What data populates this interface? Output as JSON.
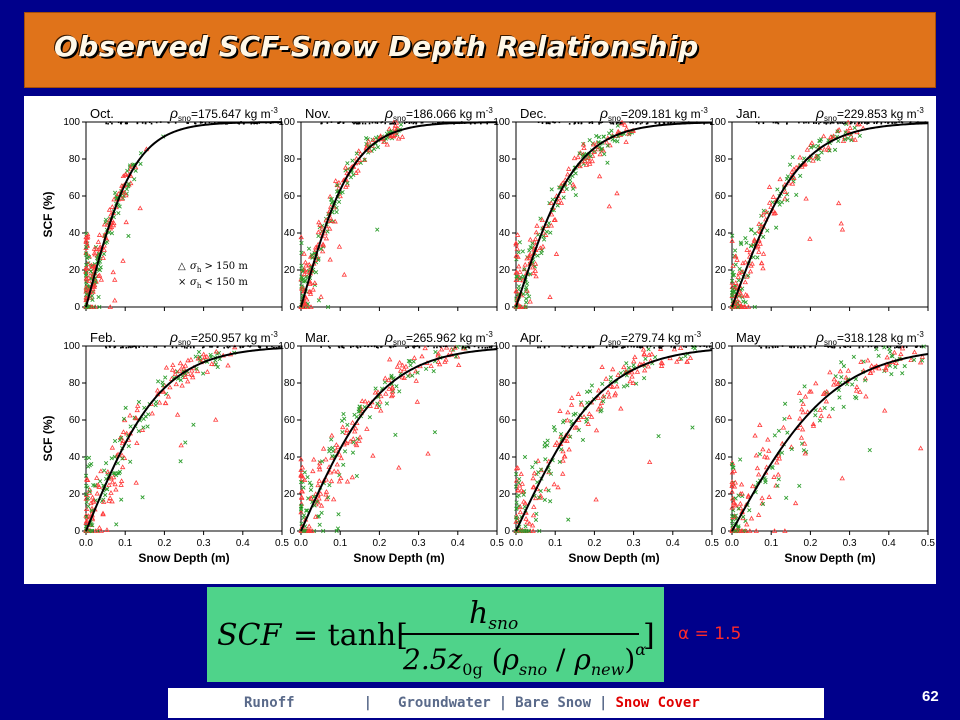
{
  "title": "Observed SCF-Snow Depth Relationship",
  "alpha_note": "α = 1.5",
  "formula": {
    "lhs": "SCF",
    "equals": "= tanh[",
    "numerator": "h",
    "numerator_sub": "sno",
    "coef": "2.5z",
    "z_sub": "0g",
    "rho_sno_sub": "sno",
    "rho_new_sub": "new",
    "exponent": "α",
    "close": "]"
  },
  "nav": {
    "items": [
      "Runoff",
      "Groundwater",
      "Bare Snow"
    ],
    "active": "Snow Cover",
    "separator": "|"
  },
  "slide_number": "62",
  "colors": {
    "background": "#00008b",
    "title_bar": "#e0731a",
    "formula_bg": "#4fd38a",
    "sigma_high": "#ff3b3b",
    "sigma_low": "#2e9e2e",
    "curve": "#000000",
    "nav_active": "#e00000"
  },
  "chart_data": [
    {
      "type": "scatter",
      "month": "Oct.",
      "rho": "175.647",
      "rho_value": 175.647
    },
    {
      "type": "scatter",
      "month": "Nov.",
      "rho": "186.066",
      "rho_value": 186.066
    },
    {
      "type": "scatter",
      "month": "Dec.",
      "rho": "209.181",
      "rho_value": 209.181
    },
    {
      "type": "scatter",
      "month": "Jan.",
      "rho": "229.853",
      "rho_value": 229.853
    },
    {
      "type": "scatter",
      "month": "Feb.",
      "rho": "250.957",
      "rho_value": 250.957
    },
    {
      "type": "scatter",
      "month": "Mar.",
      "rho": "265.962",
      "rho_value": 265.962
    },
    {
      "type": "scatter",
      "month": "Apr.",
      "rho": "279.74",
      "rho_value": 279.74
    },
    {
      "type": "scatter",
      "month": "May",
      "rho": "318.128",
      "rho_value": 318.128
    }
  ],
  "chart_common": {
    "rho_prefix": "ρ",
    "rho_sub": "sno",
    "rho_unit": "kg m",
    "rho_unit_exp": "-3",
    "xlabel": "Snow Depth (m)",
    "ylabel": "SCF (%)",
    "xlim": [
      0,
      0.5
    ],
    "ylim": [
      0,
      100
    ],
    "xticks": [
      "0.0",
      "0.1",
      "0.2",
      "0.3",
      "0.4",
      "0.5"
    ],
    "yticks": [
      "0",
      "20",
      "40",
      "60",
      "80",
      "100"
    ],
    "legend": [
      {
        "symbol": "△",
        "text": "σ",
        "sub": "h",
        "cond": " > 150 m",
        "color": "#ff3b3b"
      },
      {
        "symbol": "×",
        "text": "σ",
        "sub": "h",
        "cond": " < 150 m",
        "color": "#2e9e2e"
      }
    ]
  }
}
